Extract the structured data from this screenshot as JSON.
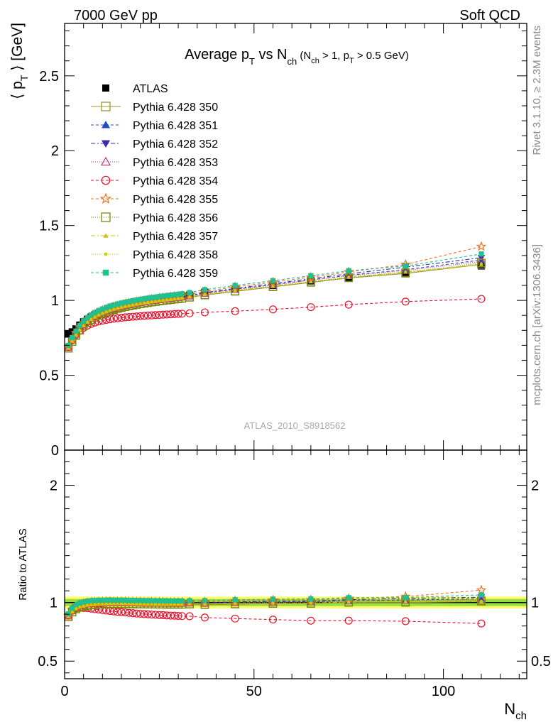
{
  "header": {
    "left": "7000 GeV pp",
    "right": "Soft QCD"
  },
  "side_labels": {
    "rivet": "Rivet 3.1.10, ≥ 2.3M events",
    "mcplots": "mcplots.cern.ch [arXiv:1306.3436]"
  },
  "watermark": "ATLAS_2010_S8918562",
  "colors": {
    "atlas": "#000000",
    "band_outer": "#ffff66",
    "band_inner": "#99dd44"
  },
  "chart_data": [
    {
      "type": "scatter",
      "panel": "main",
      "title": "Average p_T vs N_ch (N_ch > 1, p_T > 0.5 GeV)",
      "title_parts": {
        "main": "Average p",
        "main_sub": "T",
        "mid": " vs N",
        "mid_sub": "ch",
        "cut_open": " (N",
        "cut_sub1": "ch",
        "cut_mid": " > 1, p",
        "cut_sub2": "T",
        "cut_close": " > 0.5 GeV)"
      },
      "ylabel": "⟨ p_T ⟩ [GeV]",
      "ylabel_parts": {
        "open": "⟨ p",
        "sub": "T",
        "close": " ⟩ [GeV]"
      },
      "xlim": [
        0,
        122
      ],
      "ylim": [
        0,
        2.85
      ],
      "yticks": [
        0,
        0.5,
        1,
        1.5,
        2,
        2.5
      ],
      "ytick_labels": [
        "0",
        "0.5",
        "1",
        "1.5",
        "2",
        "2.5"
      ],
      "legend_position": "top-left",
      "x": [
        1,
        2,
        3,
        4,
        5,
        6,
        7,
        8,
        9,
        10,
        11,
        12,
        13,
        14,
        15,
        16,
        17,
        18,
        19,
        20,
        21,
        22,
        23,
        24,
        25,
        26,
        27,
        28,
        29,
        30,
        31,
        33,
        37,
        45,
        55,
        65,
        75,
        90,
        110
      ],
      "series": [
        {
          "name": "ATLAS",
          "color": "#000000",
          "dash": "none",
          "marker": "filled-square",
          "values": [
            0.775,
            0.79,
            0.81,
            0.835,
            0.857,
            0.874,
            0.889,
            0.903,
            0.914,
            0.925,
            0.934,
            0.942,
            0.95,
            0.957,
            0.963,
            0.969,
            0.975,
            0.98,
            0.986,
            0.99,
            0.995,
            0.999,
            1.003,
            1.007,
            1.011,
            1.014,
            1.018,
            1.021,
            1.024,
            1.027,
            1.03,
            1.035,
            1.055,
            1.075,
            1.1,
            1.13,
            1.15,
            1.18,
            1.23
          ]
        },
        {
          "name": "Pythia 6.428 350",
          "color": "#999933",
          "dash": "none",
          "marker": "open-square",
          "values": [
            0.68,
            0.725,
            0.765,
            0.8,
            0.828,
            0.852,
            0.87,
            0.886,
            0.9,
            0.911,
            0.921,
            0.93,
            0.938,
            0.945,
            0.951,
            0.957,
            0.962,
            0.967,
            0.972,
            0.976,
            0.98,
            0.984,
            0.988,
            0.991,
            0.995,
            0.998,
            1.001,
            1.004,
            1.007,
            1.01,
            1.013,
            1.02,
            1.035,
            1.06,
            1.09,
            1.12,
            1.15,
            1.18,
            1.24
          ]
        },
        {
          "name": "Pythia 6.428 351",
          "color": "#1f4fbf",
          "dash": "4,3",
          "marker": "filled-triangle-up",
          "values": [
            0.685,
            0.735,
            0.776,
            0.812,
            0.84,
            0.864,
            0.882,
            0.898,
            0.911,
            0.922,
            0.932,
            0.941,
            0.948,
            0.955,
            0.961,
            0.967,
            0.972,
            0.977,
            0.982,
            0.986,
            0.99,
            0.994,
            0.998,
            1.001,
            1.005,
            1.008,
            1.011,
            1.014,
            1.017,
            1.02,
            1.023,
            1.03,
            1.048,
            1.075,
            1.105,
            1.138,
            1.168,
            1.205,
            1.27
          ]
        },
        {
          "name": "Pythia 6.428 352",
          "color": "#3a2aa8",
          "dash": "6,3,2,3",
          "marker": "filled-triangle-down",
          "values": [
            0.688,
            0.738,
            0.779,
            0.815,
            0.843,
            0.867,
            0.885,
            0.901,
            0.914,
            0.925,
            0.935,
            0.944,
            0.951,
            0.958,
            0.964,
            0.97,
            0.975,
            0.98,
            0.985,
            0.989,
            0.993,
            0.997,
            1.001,
            1.004,
            1.008,
            1.011,
            1.014,
            1.017,
            1.02,
            1.023,
            1.026,
            1.033,
            1.052,
            1.08,
            1.112,
            1.145,
            1.178,
            1.222,
            1.285
          ]
        },
        {
          "name": "Pythia 6.428 353",
          "color": "#c0307f",
          "dash": "1,2",
          "marker": "open-triangle-up",
          "values": [
            0.684,
            0.733,
            0.774,
            0.81,
            0.838,
            0.862,
            0.88,
            0.896,
            0.909,
            0.92,
            0.93,
            0.939,
            0.946,
            0.953,
            0.959,
            0.965,
            0.97,
            0.975,
            0.98,
            0.984,
            0.988,
            0.992,
            0.996,
            0.999,
            1.003,
            1.006,
            1.009,
            1.012,
            1.015,
            1.018,
            1.021,
            1.028,
            1.046,
            1.072,
            1.102,
            1.135,
            1.165,
            1.2,
            1.26
          ]
        },
        {
          "name": "Pythia 6.428 354",
          "color": "#e8102a",
          "dash": "4,3",
          "marker": "open-circle",
          "values": [
            0.69,
            0.735,
            0.77,
            0.797,
            0.817,
            0.832,
            0.843,
            0.852,
            0.859,
            0.865,
            0.87,
            0.874,
            0.878,
            0.881,
            0.884,
            0.887,
            0.889,
            0.891,
            0.893,
            0.895,
            0.897,
            0.899,
            0.9,
            0.902,
            0.903,
            0.905,
            0.906,
            0.907,
            0.909,
            0.91,
            0.911,
            0.914,
            0.92,
            0.928,
            0.94,
            0.955,
            0.972,
            0.992,
            1.01
          ]
        },
        {
          "name": "Pythia 6.428 355",
          "color": "#f07020",
          "dash": "4,3",
          "marker": "open-star",
          "values": [
            0.69,
            0.742,
            0.785,
            0.822,
            0.85,
            0.874,
            0.892,
            0.908,
            0.921,
            0.932,
            0.942,
            0.951,
            0.958,
            0.965,
            0.971,
            0.977,
            0.982,
            0.987,
            0.992,
            0.996,
            1.0,
            1.004,
            1.008,
            1.011,
            1.015,
            1.018,
            1.021,
            1.024,
            1.027,
            1.03,
            1.033,
            1.04,
            1.06,
            1.09,
            1.122,
            1.155,
            1.19,
            1.24,
            1.36
          ]
        },
        {
          "name": "Pythia 6.428 356",
          "color": "#778a10",
          "dash": "1,2",
          "marker": "open-square",
          "values": [
            0.68,
            0.726,
            0.766,
            0.801,
            0.829,
            0.853,
            0.871,
            0.887,
            0.901,
            0.912,
            0.922,
            0.931,
            0.939,
            0.946,
            0.952,
            0.958,
            0.963,
            0.968,
            0.973,
            0.977,
            0.981,
            0.985,
            0.989,
            0.992,
            0.996,
            0.999,
            1.002,
            1.005,
            1.008,
            1.011,
            1.014,
            1.021,
            1.037,
            1.062,
            1.092,
            1.122,
            1.152,
            1.185,
            1.25
          ]
        },
        {
          "name": "Pythia 6.428 357",
          "color": "#d4c012",
          "dash": "6,3,2,3",
          "marker": "small-filled-triangle",
          "values": [
            0.681,
            0.728,
            0.768,
            0.803,
            0.831,
            0.855,
            0.873,
            0.889,
            0.903,
            0.914,
            0.924,
            0.933,
            0.941,
            0.948,
            0.954,
            0.96,
            0.965,
            0.97,
            0.975,
            0.979,
            0.983,
            0.987,
            0.991,
            0.994,
            0.998,
            1.001,
            1.004,
            1.007,
            1.01,
            1.013,
            1.016,
            1.023,
            1.04,
            1.065,
            1.095,
            1.125,
            1.155,
            1.19,
            1.24
          ]
        },
        {
          "name": "Pythia 6.428 358",
          "color": "#cccc00",
          "dash": "1,2",
          "marker": "small-dot",
          "values": [
            0.682,
            0.729,
            0.769,
            0.804,
            0.832,
            0.856,
            0.874,
            0.89,
            0.904,
            0.915,
            0.925,
            0.934,
            0.942,
            0.949,
            0.955,
            0.961,
            0.966,
            0.971,
            0.976,
            0.98,
            0.984,
            0.988,
            0.992,
            0.995,
            0.999,
            1.002,
            1.005,
            1.008,
            1.011,
            1.014,
            1.017,
            1.024,
            1.041,
            1.066,
            1.096,
            1.126,
            1.156,
            1.19,
            1.245
          ]
        },
        {
          "name": "Pythia 6.428 359",
          "color": "#20c090",
          "dash": "4,3",
          "marker": "filled-square-small",
          "values": [
            0.7,
            0.752,
            0.795,
            0.832,
            0.861,
            0.885,
            0.903,
            0.919,
            0.932,
            0.943,
            0.953,
            0.962,
            0.969,
            0.976,
            0.982,
            0.988,
            0.993,
            0.998,
            1.003,
            1.007,
            1.011,
            1.015,
            1.019,
            1.022,
            1.026,
            1.029,
            1.032,
            1.035,
            1.038,
            1.041,
            1.044,
            1.052,
            1.072,
            1.1,
            1.132,
            1.165,
            1.198,
            1.23,
            1.31
          ]
        }
      ]
    },
    {
      "type": "scatter",
      "panel": "ratio",
      "ylabel": "Ratio to ATLAS",
      "xlabel": "N_ch",
      "xlabel_parts": {
        "main": "N",
        "sub": "ch"
      },
      "xlim": [
        0,
        122
      ],
      "ylim": [
        0.35,
        2.3
      ],
      "xticks": [
        0,
        50,
        100
      ],
      "xtick_labels": [
        "0",
        "50",
        "100"
      ],
      "yticks": [
        0.5,
        1,
        2
      ],
      "ytick_labels": [
        "0.5",
        "1",
        "2"
      ],
      "reference": 1,
      "band_outer": [
        0.95,
        1.05
      ],
      "band_inner": [
        0.97,
        1.03
      ]
    }
  ]
}
